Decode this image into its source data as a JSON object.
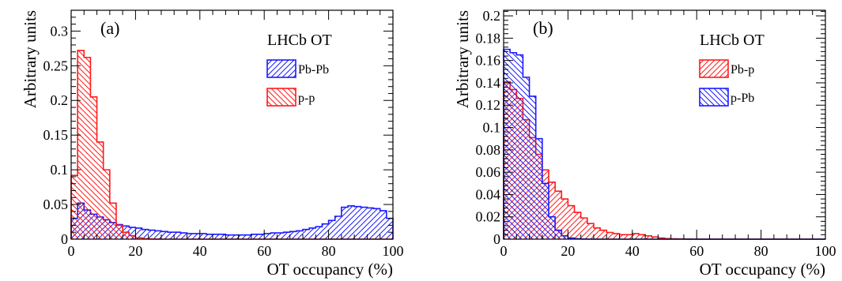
{
  "chart_data": [
    {
      "type": "histogram",
      "panel_label": "(a)",
      "annotation": "LHCb OT",
      "xlabel": "OT occupancy (%)",
      "ylabel": "Arbitrary units",
      "xlim": [
        0,
        100
      ],
      "ylim": [
        0,
        0.33
      ],
      "xticks": [
        "0",
        "20",
        "40",
        "60",
        "80",
        "100"
      ],
      "yticks": [
        "0",
        "0.05",
        "0.1",
        "0.15",
        "0.2",
        "0.25",
        "0.3"
      ],
      "bin_width": 2,
      "legend_position": "upper-right",
      "series": [
        {
          "name": "Pb-Pb",
          "color": "#1a1aff",
          "hatch": "forward",
          "values": [
            0.03,
            0.052,
            0.042,
            0.036,
            0.032,
            0.028,
            0.024,
            0.021,
            0.019,
            0.017,
            0.016,
            0.014,
            0.013,
            0.012,
            0.011,
            0.01,
            0.01,
            0.009,
            0.008,
            0.008,
            0.008,
            0.007,
            0.007,
            0.007,
            0.006,
            0.006,
            0.006,
            0.006,
            0.007,
            0.007,
            0.008,
            0.009,
            0.009,
            0.01,
            0.011,
            0.012,
            0.014,
            0.016,
            0.018,
            0.022,
            0.027,
            0.033,
            0.046,
            0.048,
            0.047,
            0.046,
            0.045,
            0.044,
            0.041,
            0.03
          ]
        },
        {
          "name": "p-p",
          "color": "#ff1a1a",
          "hatch": "backward",
          "values": [
            0.092,
            0.272,
            0.262,
            0.205,
            0.14,
            0.1,
            0.052,
            0.02,
            0.01,
            0.005,
            0.002,
            0.0006,
            0.0002,
            0.0001,
            0.0,
            0.0,
            0.0,
            0.0,
            0.0,
            0.0,
            0.0,
            0.0,
            0.0,
            0.0,
            0.0,
            0.0,
            0.0,
            0.0,
            0.0,
            0.0,
            0.0,
            0.0,
            0.0,
            0.0,
            0.0,
            0.0,
            0.0,
            0.0,
            0.0,
            0.0,
            0.0,
            0.0,
            0.0,
            0.0,
            0.0,
            0.0,
            0.0,
            0.0,
            0.0,
            0.0
          ]
        }
      ]
    },
    {
      "type": "histogram",
      "panel_label": "(b)",
      "annotation": "LHCb OT",
      "xlabel": "OT occupancy (%)",
      "ylabel": "Arbitrary units",
      "xlim": [
        0,
        100
      ],
      "ylim": [
        0,
        0.205
      ],
      "xticks": [
        "0",
        "20",
        "40",
        "60",
        "80",
        "100"
      ],
      "yticks": [
        "0",
        "0.02",
        "0.04",
        "0.06",
        "0.08",
        "0.1",
        "0.12",
        "0.14",
        "0.16",
        "0.18",
        "0.2"
      ],
      "bin_width": 2,
      "legend_position": "upper-right",
      "series": [
        {
          "name": "Pb-p",
          "color": "#ff1a1a",
          "hatch": "forward",
          "values": [
            0.141,
            0.134,
            0.126,
            0.107,
            0.091,
            0.076,
            0.062,
            0.051,
            0.043,
            0.036,
            0.03,
            0.024,
            0.019,
            0.014,
            0.01,
            0.008,
            0.006,
            0.005,
            0.004,
            0.004,
            0.005,
            0.004,
            0.003,
            0.002,
            0.001,
            0.0005,
            0.0003,
            0.0002,
            0.0001,
            0.0,
            0.0,
            0.0,
            0.0,
            0.0,
            0.0,
            0.0,
            0.0,
            0.0,
            0.0,
            0.0,
            0.0,
            0.0,
            0.0,
            0.0,
            0.0,
            0.0,
            0.0,
            0.0,
            0.0,
            0.0
          ]
        },
        {
          "name": "p-Pb",
          "color": "#1a1aff",
          "hatch": "backward",
          "values": [
            0.17,
            0.167,
            0.165,
            0.145,
            0.128,
            0.09,
            0.05,
            0.02,
            0.008,
            0.003,
            0.001,
            0.0004,
            0.0001,
            0.0,
            0.0,
            0.0,
            0.0,
            0.0,
            0.0,
            0.0,
            0.0,
            0.0,
            0.0,
            0.0,
            0.0,
            0.0,
            0.0,
            0.0,
            0.0,
            0.0,
            0.0,
            0.0,
            0.0,
            0.0,
            0.0,
            0.0,
            0.0,
            0.0,
            0.0,
            0.0,
            0.0,
            0.0,
            0.0,
            0.0,
            0.0,
            0.0,
            0.0,
            0.0,
            0.0,
            0.0
          ]
        }
      ]
    }
  ]
}
